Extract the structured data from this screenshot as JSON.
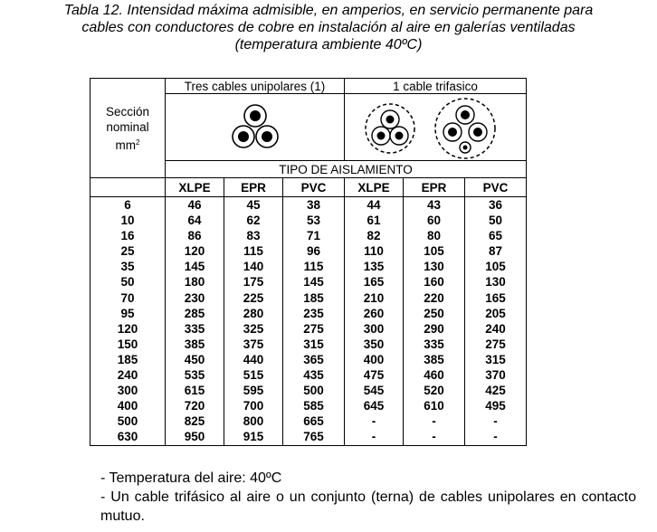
{
  "caption": {
    "line1": "Tabla 12. Intensidad máxima admisible, en amperios, en servicio permanente para",
    "line2": "cables con conductores de cobre en instalación al aire en galerías ventiladas",
    "line3": "(temperatura ambiente 40ºC)"
  },
  "table": {
    "group_unipolar": "Tres cables unipolares (1)",
    "group_trifasico": "1 cable trifasico",
    "seccion_line1": "Sección",
    "seccion_line2": "nominal",
    "seccion_unit": "mm",
    "seccion_exp": "2",
    "tipo_aislamiento": "TIPO DE AISLAMIENTO",
    "types": [
      "XLPE",
      "EPR",
      "PVC",
      "XLPE",
      "EPR",
      "PVC"
    ],
    "sections": [
      "6",
      "10",
      "16",
      "25",
      "35",
      "50",
      "70",
      "95",
      "120",
      "150",
      "185",
      "240",
      "300",
      "400",
      "500",
      "630"
    ],
    "columns": [
      [
        "46",
        "64",
        "86",
        "120",
        "145",
        "180",
        "230",
        "285",
        "335",
        "385",
        "450",
        "535",
        "615",
        "720",
        "825",
        "950"
      ],
      [
        "45",
        "62",
        "83",
        "115",
        "140",
        "175",
        "225",
        "280",
        "325",
        "375",
        "440",
        "515",
        "595",
        "700",
        "800",
        "915"
      ],
      [
        "38",
        "53",
        "71",
        "96",
        "115",
        "145",
        "185",
        "235",
        "275",
        "315",
        "365",
        "435",
        "500",
        "585",
        "665",
        "765"
      ],
      [
        "44",
        "61",
        "82",
        "110",
        "135",
        "165",
        "210",
        "260",
        "300",
        "350",
        "400",
        "475",
        "545",
        "645",
        "-",
        "-"
      ],
      [
        "43",
        "60",
        "80",
        "105",
        "130",
        "160",
        "220",
        "250",
        "290",
        "335",
        "385",
        "460",
        "520",
        "610",
        "-",
        "-"
      ],
      [
        "36",
        "50",
        "65",
        "87",
        "105",
        "130",
        "165",
        "205",
        "240",
        "275",
        "315",
        "370",
        "425",
        "495",
        "-",
        "-"
      ]
    ]
  },
  "notes": {
    "note1": "- Temperatura del aire: 40ºC",
    "note2": "- Un cable trifásico al aire o un conjunto (terna) de cables unipolares en contacto mutuo."
  }
}
